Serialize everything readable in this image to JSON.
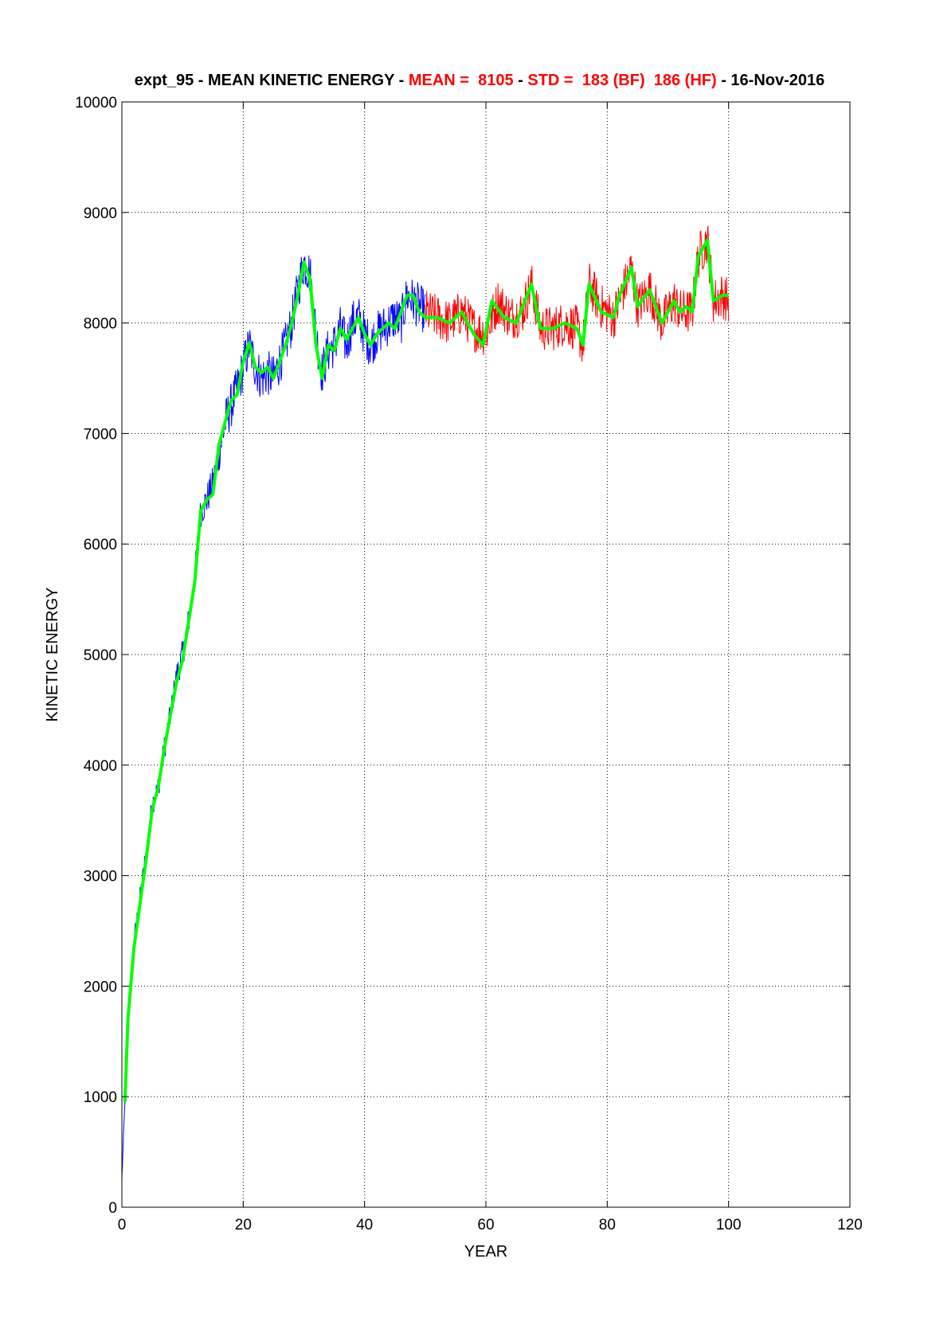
{
  "chart_data": {
    "type": "line",
    "title": {
      "prefix": "expt_95 - MEAN KINETIC ENERGY - ",
      "mean": "MEAN =  8105",
      "sep1": " - ",
      "std": "STD =  183 (BF)  186 (HF)",
      "suffix": " - 16-Nov-2016"
    },
    "xlabel": "YEAR",
    "ylabel": "KINETIC ENERGY",
    "xlim": [
      0,
      120
    ],
    "ylim": [
      0,
      10000
    ],
    "xticks": [
      "0",
      "20",
      "40",
      "60",
      "80",
      "100",
      "120"
    ],
    "yticks": [
      "0",
      "1000",
      "2000",
      "3000",
      "4000",
      "5000",
      "6000",
      "7000",
      "8000",
      "9000",
      "10000"
    ],
    "grid": true,
    "colors": {
      "title_red": "#ff0000",
      "spin_up": "#0000ff",
      "analysis": "#ff0000",
      "smoothed": "#00ff00"
    },
    "series": [
      {
        "segment": "spin-up",
        "color": "#0000ff",
        "x_range": [
          0,
          50
        ],
        "anchors": [
          [
            0,
            250
          ],
          [
            0.3,
            700
          ],
          [
            1,
            1600
          ],
          [
            2,
            2400
          ],
          [
            3,
            2800
          ],
          [
            4,
            3200
          ],
          [
            5,
            3650
          ],
          [
            6,
            3800
          ],
          [
            7,
            4150
          ],
          [
            8,
            4450
          ],
          [
            9,
            4800
          ],
          [
            10,
            5000
          ],
          [
            11,
            5300
          ],
          [
            12,
            5700
          ],
          [
            13,
            6300
          ],
          [
            14,
            6400
          ],
          [
            15,
            6550
          ],
          [
            16,
            6800
          ],
          [
            17,
            7100
          ],
          [
            18,
            7250
          ],
          [
            19,
            7400
          ],
          [
            20,
            7600
          ],
          [
            21,
            7800
          ],
          [
            22,
            7600
          ],
          [
            23,
            7500
          ],
          [
            24,
            7550
          ],
          [
            25,
            7500
          ],
          [
            26,
            7650
          ],
          [
            27,
            7800
          ],
          [
            28,
            8000
          ],
          [
            29,
            8300
          ],
          [
            30,
            8550
          ],
          [
            31,
            8450
          ],
          [
            32,
            7900
          ],
          [
            33,
            7550
          ],
          [
            34,
            7750
          ],
          [
            35,
            7800
          ],
          [
            36,
            7950
          ],
          [
            37,
            7800
          ],
          [
            38,
            8000
          ],
          [
            39,
            8050
          ],
          [
            40,
            7900
          ],
          [
            41,
            7800
          ],
          [
            42,
            7900
          ],
          [
            43,
            7950
          ],
          [
            44,
            8000
          ],
          [
            45,
            8050
          ],
          [
            46,
            8000
          ],
          [
            47,
            8250
          ],
          [
            48,
            8200
          ],
          [
            49,
            8150
          ],
          [
            50,
            8100
          ]
        ]
      },
      {
        "segment": "analysis",
        "color": "#ff0000",
        "x_range": [
          50,
          100
        ],
        "anchors": [
          [
            50,
            8100
          ],
          [
            52,
            8050
          ],
          [
            54,
            8000
          ],
          [
            56,
            8100
          ],
          [
            58,
            7950
          ],
          [
            60,
            7900
          ],
          [
            62,
            8200
          ],
          [
            64,
            8050
          ],
          [
            66,
            8100
          ],
          [
            67.5,
            8350
          ],
          [
            69,
            7950
          ],
          [
            71,
            7950
          ],
          [
            73,
            8000
          ],
          [
            75,
            7950
          ],
          [
            76,
            7800
          ],
          [
            77,
            8350
          ],
          [
            79,
            8150
          ],
          [
            81,
            8050
          ],
          [
            82,
            8200
          ],
          [
            84,
            8500
          ],
          [
            85,
            8150
          ],
          [
            87,
            8300
          ],
          [
            89,
            8000
          ],
          [
            91,
            8200
          ],
          [
            92,
            8100
          ],
          [
            94,
            8100
          ],
          [
            95,
            8600
          ],
          [
            96.5,
            8750
          ],
          [
            97.5,
            8200
          ],
          [
            99,
            8250
          ],
          [
            100,
            8200
          ]
        ]
      },
      {
        "segment": "smoothed",
        "color": "#00ff00",
        "x_range": [
          0.5,
          100
        ],
        "anchors": [
          [
            0.5,
            950
          ],
          [
            1,
            1700
          ],
          [
            2,
            2350
          ],
          [
            3,
            2750
          ],
          [
            4,
            3150
          ],
          [
            5,
            3600
          ],
          [
            6,
            3800
          ],
          [
            7,
            4150
          ],
          [
            8,
            4450
          ],
          [
            9,
            4750
          ],
          [
            10,
            4950
          ],
          [
            11,
            5300
          ],
          [
            12,
            5650
          ],
          [
            13,
            6300
          ],
          [
            14,
            6400
          ],
          [
            15,
            6450
          ],
          [
            16,
            6900
          ],
          [
            17,
            7100
          ],
          [
            18,
            7300
          ],
          [
            19,
            7350
          ],
          [
            20,
            7650
          ],
          [
            21,
            7820
          ],
          [
            22,
            7600
          ],
          [
            23,
            7550
          ],
          [
            24,
            7600
          ],
          [
            25,
            7500
          ],
          [
            26,
            7650
          ],
          [
            27,
            7800
          ],
          [
            28,
            8000
          ],
          [
            29,
            8250
          ],
          [
            30,
            8550
          ],
          [
            31,
            8400
          ],
          [
            32,
            7800
          ],
          [
            33,
            7500
          ],
          [
            34,
            7800
          ],
          [
            35,
            7750
          ],
          [
            36,
            7950
          ],
          [
            37,
            7850
          ],
          [
            38,
            7950
          ],
          [
            39,
            8050
          ],
          [
            40,
            7900
          ],
          [
            41,
            7800
          ],
          [
            42,
            7900
          ],
          [
            43,
            7950
          ],
          [
            44,
            8000
          ],
          [
            45,
            7950
          ],
          [
            46,
            8100
          ],
          [
            47,
            8250
          ],
          [
            48,
            8250
          ],
          [
            49,
            8100
          ],
          [
            50,
            8050
          ],
          [
            52,
            8050
          ],
          [
            54,
            8000
          ],
          [
            56,
            8100
          ],
          [
            58,
            7900
          ],
          [
            59.5,
            7800
          ],
          [
            61,
            8200
          ],
          [
            63,
            8050
          ],
          [
            65,
            8000
          ],
          [
            67.5,
            8350
          ],
          [
            69,
            7950
          ],
          [
            71,
            7950
          ],
          [
            73,
            8000
          ],
          [
            75,
            7950
          ],
          [
            76,
            7800
          ],
          [
            77,
            8350
          ],
          [
            79,
            8100
          ],
          [
            81,
            8050
          ],
          [
            82,
            8250
          ],
          [
            84,
            8500
          ],
          [
            85,
            8150
          ],
          [
            87,
            8300
          ],
          [
            89,
            8000
          ],
          [
            91,
            8200
          ],
          [
            92,
            8100
          ],
          [
            93,
            8150
          ],
          [
            94,
            8100
          ],
          [
            95,
            8600
          ],
          [
            96.5,
            8750
          ],
          [
            97.5,
            8200
          ],
          [
            99,
            8250
          ],
          [
            100,
            8250
          ]
        ]
      }
    ]
  }
}
